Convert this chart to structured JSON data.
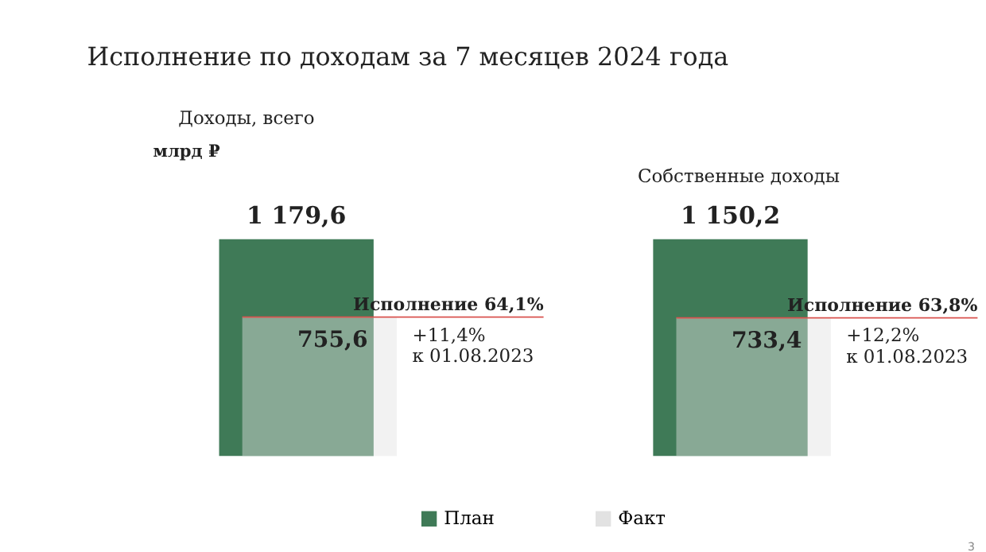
{
  "chart_data": [
    {
      "type": "bar",
      "title": "Исполнение по доходам за 7 месяцев 2024 года",
      "subtitle": "Доходы, всего",
      "ylabel": "млрд ₽",
      "categories": [
        null
      ],
      "legend": "bottom",
      "series": [
        {
          "name": "План",
          "color": "#3f7a57",
          "values": [
            1179.6
          ],
          "value_labels": [
            "1 179,6"
          ]
        },
        {
          "name": "Факт",
          "color": "#e2e2e2",
          "values": [
            755.6
          ],
          "value_labels": [
            "755,6"
          ]
        }
      ],
      "ref_lines": [
        {
          "axis": "y",
          "value": 755.6,
          "label": "Исполнение 64,1%",
          "color": "#d9534f"
        }
      ],
      "annotations": [
        "+11,4%\nк 01.08.2023"
      ]
    },
    {
      "type": "bar",
      "subtitle": "Собственные доходы",
      "categories": [
        null
      ],
      "series": [
        {
          "color": "#3f7a57",
          "values": [
            1150.2
          ],
          "value_labels": [
            "1 150,2"
          ]
        },
        {
          "color": "#e2e2e2",
          "values": [
            733.4
          ],
          "value_labels": [
            "733,4"
          ]
        }
      ],
      "ref_lines": [
        {
          "axis": "y",
          "value": 733.4,
          "label": "Исполнение 63,8%",
          "color": "#d9534f"
        }
      ],
      "annotations": [
        "+12,2%\nк 01.08.2023",
        "3"
      ]
    }
  ]
}
